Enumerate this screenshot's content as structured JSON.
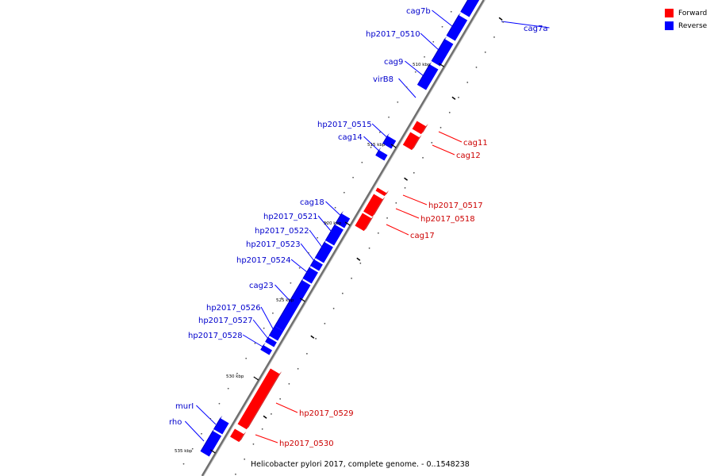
{
  "caption": "Helicobacter pylori 2017, complete genome. - 0..1548238",
  "legend": {
    "items": [
      {
        "label": "Forward",
        "color": "#ff0000"
      },
      {
        "label": "Reverse",
        "color": "#0000ff"
      }
    ]
  },
  "colors": {
    "forward": "#ff0000",
    "forward_shade": "#c00000",
    "reverse": "#0000ff",
    "reverse_shade": "#0000b0",
    "backbone": "#6e6e6e",
    "tick": "#000000"
  },
  "scale_labels": [
    "510 kbp",
    "515 kbp",
    "520 kbp",
    "525 kbp",
    "530 kbp",
    "535 kbp"
  ],
  "genes": [
    {
      "name": "cag7b",
      "strand": "reverse"
    },
    {
      "name": "cag7a",
      "strand": "reverse"
    },
    {
      "name": "hp2017_0510",
      "strand": "reverse"
    },
    {
      "name": "cag9",
      "strand": "reverse"
    },
    {
      "name": "virB8",
      "strand": "reverse"
    },
    {
      "name": "hp2017_0515",
      "strand": "reverse"
    },
    {
      "name": "cag14",
      "strand": "reverse"
    },
    {
      "name": "cag11",
      "strand": "forward"
    },
    {
      "name": "cag12",
      "strand": "forward"
    },
    {
      "name": "hp2017_0517",
      "strand": "forward"
    },
    {
      "name": "hp2017_0518",
      "strand": "forward"
    },
    {
      "name": "cag17",
      "strand": "forward"
    },
    {
      "name": "cag18",
      "strand": "reverse"
    },
    {
      "name": "hp2017_0521",
      "strand": "reverse"
    },
    {
      "name": "hp2017_0522",
      "strand": "reverse"
    },
    {
      "name": "hp2017_0523",
      "strand": "reverse"
    },
    {
      "name": "hp2017_0524",
      "strand": "reverse"
    },
    {
      "name": "cag23",
      "strand": "reverse"
    },
    {
      "name": "hp2017_0526",
      "strand": "reverse"
    },
    {
      "name": "hp2017_0527",
      "strand": "reverse"
    },
    {
      "name": "hp2017_0528",
      "strand": "reverse"
    },
    {
      "name": "hp2017_0529",
      "strand": "forward"
    },
    {
      "name": "hp2017_0530",
      "strand": "forward"
    },
    {
      "name": "murI",
      "strand": "reverse"
    },
    {
      "name": "rho",
      "strand": "reverse"
    }
  ]
}
